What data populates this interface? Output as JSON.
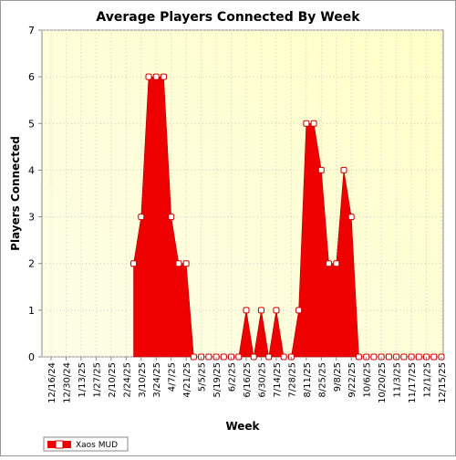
{
  "chart_data": {
    "type": "area",
    "title": "Average Players Connected By Week",
    "xlabel": "Week",
    "ylabel": "Players Connected",
    "ylim": [
      0,
      7
    ],
    "yticks": [
      0,
      1,
      2,
      3,
      4,
      5,
      6,
      7
    ],
    "grid": true,
    "legend": "bottom-left",
    "plot_background": [
      "#fefee8",
      "#ffffc8"
    ],
    "fill_color": "#ee0000",
    "marker_color": "#ffffff",
    "categories": [
      "12/16/24",
      "12/23/24",
      "12/30/24",
      "1/6/25",
      "1/13/25",
      "1/20/25",
      "1/27/25",
      "2/3/25",
      "2/10/25",
      "2/17/25",
      "2/24/25",
      "3/3/25",
      "3/10/25",
      "3/17/25",
      "3/24/25",
      "3/31/25",
      "4/7/25",
      "4/14/25",
      "4/21/25",
      "4/28/25",
      "5/5/25",
      "5/12/25",
      "5/19/25",
      "5/26/25",
      "6/2/25",
      "6/9/25",
      "6/16/25",
      "6/23/25",
      "6/30/25",
      "7/7/25",
      "7/14/25",
      "7/21/25",
      "7/28/25",
      "8/4/25",
      "8/11/25",
      "8/18/25",
      "8/25/25",
      "9/1/25",
      "9/8/25",
      "9/15/25",
      "9/22/25",
      "9/29/25",
      "10/6/25",
      "10/13/25",
      "10/20/25",
      "10/27/25",
      "11/3/25",
      "11/10/25",
      "11/17/25",
      "11/24/25",
      "12/1/25",
      "12/8/25",
      "12/15/25"
    ],
    "tick_labels": [
      "12/16/24",
      "12/30/24",
      "1/13/25",
      "1/27/25",
      "2/10/25",
      "2/24/25",
      "3/10/25",
      "3/24/25",
      "4/7/25",
      "4/21/25",
      "5/5/25",
      "5/19/25",
      "6/2/25",
      "6/16/25",
      "6/30/25",
      "7/14/25",
      "7/28/25",
      "8/11/25",
      "8/25/25",
      "9/8/25",
      "9/22/25",
      "10/6/25",
      "10/20/25",
      "11/3/25",
      "11/17/25",
      "12/1/25",
      "12/15/25"
    ],
    "series": [
      {
        "name": "Xaos MUD",
        "values": [
          null,
          null,
          null,
          null,
          null,
          null,
          null,
          null,
          null,
          null,
          null,
          2,
          3,
          6,
          6,
          6,
          3,
          2,
          2,
          0,
          0,
          0,
          0,
          0,
          0,
          0,
          1,
          0,
          1,
          0,
          1,
          0,
          0,
          1,
          5,
          5,
          4,
          2,
          2,
          4,
          3,
          0,
          0,
          0,
          0,
          0,
          0,
          0,
          0,
          0,
          0,
          0,
          0
        ]
      }
    ]
  }
}
